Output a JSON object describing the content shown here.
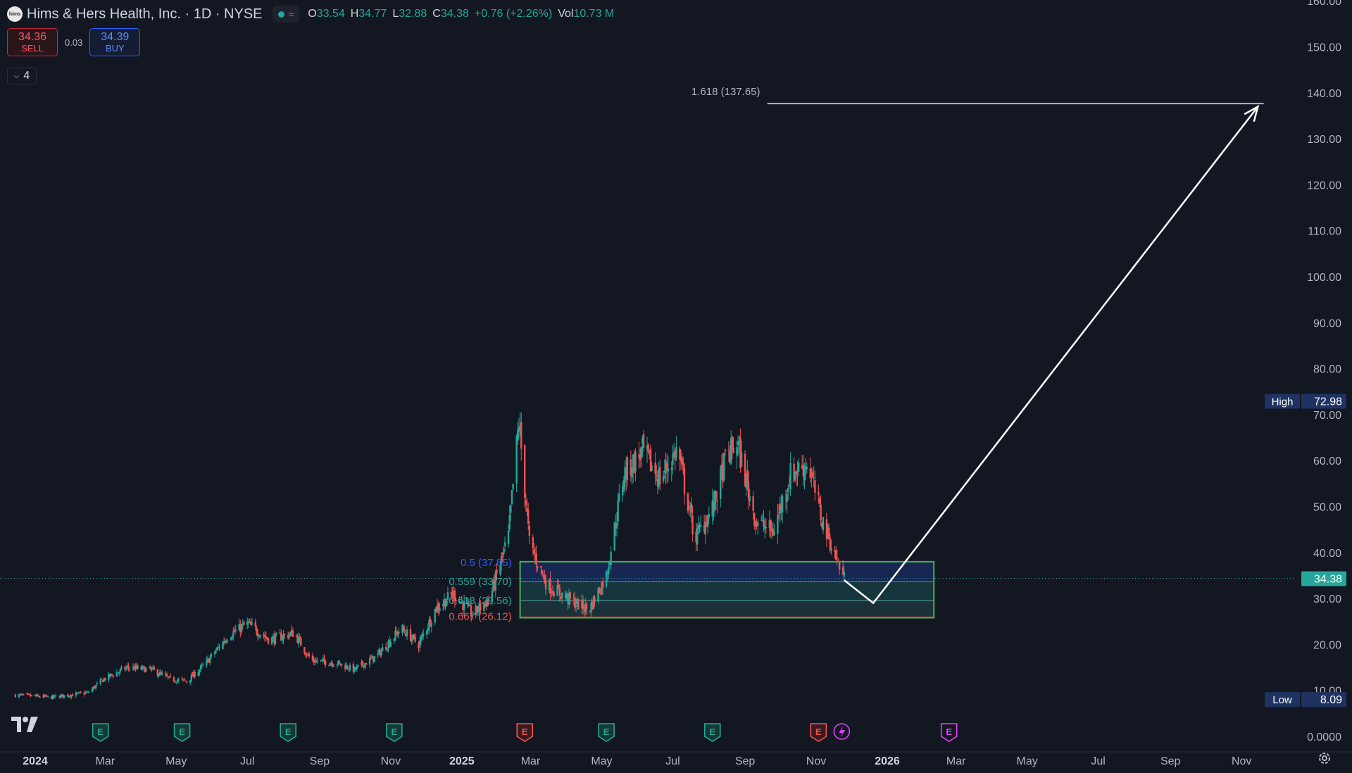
{
  "header": {
    "symbol_logo_text": "hims",
    "symbol_title": "Hims & Hers Health, Inc. · 1D · NYSE",
    "ohlc": [
      {
        "key": "O",
        "value": "33.54"
      },
      {
        "key": "H",
        "value": "34.77"
      },
      {
        "key": "L",
        "value": "32.88"
      },
      {
        "key": "C",
        "value": "34.38"
      },
      {
        "key": "",
        "value": "+0.76 (+2.26%)"
      },
      {
        "key": "Vol",
        "value": "10.73 M"
      }
    ]
  },
  "trade": {
    "sell_price": "34.36",
    "sell_label": "SELL",
    "spread": "0.03",
    "buy_price": "34.39",
    "buy_label": "BUY"
  },
  "indicators_count": "4",
  "colors": {
    "background": "#131722",
    "up": "#26a69a",
    "down": "#ef5350",
    "text": "#d1d4dc",
    "axis_text": "#b2b5be",
    "fib_0_5": "#2962ff",
    "fib_0_559": "#26a69a",
    "fib_0_618": "#26a69a",
    "fib_0_667": "#ef5350",
    "earnings_past": "#26a69a",
    "earnings_recent": "#ef5350",
    "earnings_future": "#e040fb",
    "high_low_label_bg": "#1e3361",
    "price_label_bg": "#26a69a"
  },
  "chart_data": {
    "type": "candlestick",
    "y_axis_ticks": [
      "160.00",
      "150.00",
      "140.00",
      "130.00",
      "120.00",
      "110.00",
      "100.00",
      "90.00",
      "80.00",
      "70.00",
      "60.00",
      "50.00",
      "40.00",
      "30.00",
      "20.00",
      "10.00",
      "0.0000"
    ],
    "y_tick_values": [
      160,
      150,
      140,
      130,
      120,
      110,
      100,
      90,
      80,
      70,
      60,
      50,
      40,
      30,
      20,
      10,
      0
    ],
    "x_axis_ticks": [
      {
        "label": "2024",
        "date": "2024-01-01",
        "bold": true
      },
      {
        "label": "Mar",
        "date": "2024-03-01"
      },
      {
        "label": "May",
        "date": "2024-05-01"
      },
      {
        "label": "Jul",
        "date": "2024-07-01"
      },
      {
        "label": "Sep",
        "date": "2024-09-01"
      },
      {
        "label": "Nov",
        "date": "2024-11-01"
      },
      {
        "label": "2025",
        "date": "2025-01-01",
        "bold": true
      },
      {
        "label": "Mar",
        "date": "2025-03-01"
      },
      {
        "label": "May",
        "date": "2025-05-01"
      },
      {
        "label": "Jul",
        "date": "2025-07-01"
      },
      {
        "label": "Sep",
        "date": "2025-09-01"
      },
      {
        "label": "Nov",
        "date": "2025-11-01"
      },
      {
        "label": "2026",
        "date": "2026-01-01",
        "bold": true
      },
      {
        "label": "Mar",
        "date": "2026-03-01"
      },
      {
        "label": "May",
        "date": "2026-05-01"
      },
      {
        "label": "Jul",
        "date": "2026-07-01"
      },
      {
        "label": "Sep",
        "date": "2026-09-01"
      },
      {
        "label": "Nov",
        "date": "2026-11-01"
      }
    ],
    "price_path": [
      [
        "2023-12-15",
        9.0
      ],
      [
        "2024-01-15",
        8.5
      ],
      [
        "2024-02-15",
        9.5
      ],
      [
        "2024-02-29",
        12.5
      ],
      [
        "2024-03-20",
        15.0
      ],
      [
        "2024-04-10",
        14.5
      ],
      [
        "2024-04-25",
        12.5
      ],
      [
        "2024-05-10",
        12.0
      ],
      [
        "2024-05-25",
        15.5
      ],
      [
        "2024-06-15",
        22.0
      ],
      [
        "2024-07-01",
        24.5
      ],
      [
        "2024-07-20",
        21.0
      ],
      [
        "2024-08-10",
        22.5
      ],
      [
        "2024-08-25",
        16.5
      ],
      [
        "2024-09-15",
        16.0
      ],
      [
        "2024-10-01",
        14.5
      ],
      [
        "2024-10-20",
        17.5
      ],
      [
        "2024-11-10",
        23.5
      ],
      [
        "2024-11-25",
        20.0
      ],
      [
        "2024-12-10",
        28.0
      ],
      [
        "2024-12-25",
        31.0
      ],
      [
        "2025-01-10",
        26.5
      ],
      [
        "2025-01-25",
        30.0
      ],
      [
        "2025-02-10",
        43.5
      ],
      [
        "2025-02-19",
        68.5
      ],
      [
        "2025-02-28",
        42.0
      ],
      [
        "2025-03-15",
        33.0
      ],
      [
        "2025-04-05",
        29.5
      ],
      [
        "2025-04-20",
        27.5
      ],
      [
        "2025-05-05",
        35.0
      ],
      [
        "2025-05-20",
        57.0
      ],
      [
        "2025-06-05",
        62.0
      ],
      [
        "2025-06-20",
        56.0
      ],
      [
        "2025-07-05",
        62.5
      ],
      [
        "2025-07-20",
        43.0
      ],
      [
        "2025-08-05",
        50.0
      ],
      [
        "2025-08-15",
        60.0
      ],
      [
        "2025-08-25",
        64.0
      ],
      [
        "2025-09-10",
        47.0
      ],
      [
        "2025-09-25",
        44.5
      ],
      [
        "2025-10-10",
        57.0
      ],
      [
        "2025-10-25",
        59.5
      ],
      [
        "2025-11-05",
        48.0
      ],
      [
        "2025-11-15",
        41.0
      ],
      [
        "2025-11-25",
        34.38
      ]
    ],
    "high": {
      "label": "High",
      "value": "72.98"
    },
    "low": {
      "label": "Low",
      "value": "8.09"
    },
    "last_price": "34.38",
    "fib_labels": [
      {
        "text": "0.5 (37.85)",
        "value": 37.85,
        "color_key": "fib_0_5"
      },
      {
        "text": "0.559 (33.70)",
        "value": 33.7,
        "color_key": "fib_0_559"
      },
      {
        "text": "0.618 (29.56)",
        "value": 29.56,
        "color_key": "fib_0_618"
      },
      {
        "text": "0.667 (26.12)",
        "value": 26.12,
        "color_key": "fib_0_667"
      }
    ],
    "fib_zone": {
      "start": "2025-02-20",
      "end": "2026-02-10",
      "top": 38.0,
      "bottom": 25.8
    },
    "fib_extension": {
      "text": "1.618 (137.65)",
      "value": 137.65,
      "start": "2025-09-20",
      "end": "2026-11-20"
    },
    "projection": [
      [
        "2025-11-25",
        34.0
      ],
      [
        "2025-12-20",
        29.0
      ],
      [
        "2026-11-15",
        137.0
      ]
    ],
    "earnings": [
      {
        "date": "2024-02-26",
        "kind": "past"
      },
      {
        "date": "2024-05-06",
        "kind": "past"
      },
      {
        "date": "2024-08-05",
        "kind": "past"
      },
      {
        "date": "2024-11-04",
        "kind": "past"
      },
      {
        "date": "2025-02-24",
        "kind": "recent"
      },
      {
        "date": "2025-05-05",
        "kind": "past"
      },
      {
        "date": "2025-08-04",
        "kind": "past"
      },
      {
        "date": "2025-11-03",
        "kind": "recent",
        "extra": "split"
      },
      {
        "date": "2026-02-23",
        "kind": "future"
      }
    ]
  }
}
